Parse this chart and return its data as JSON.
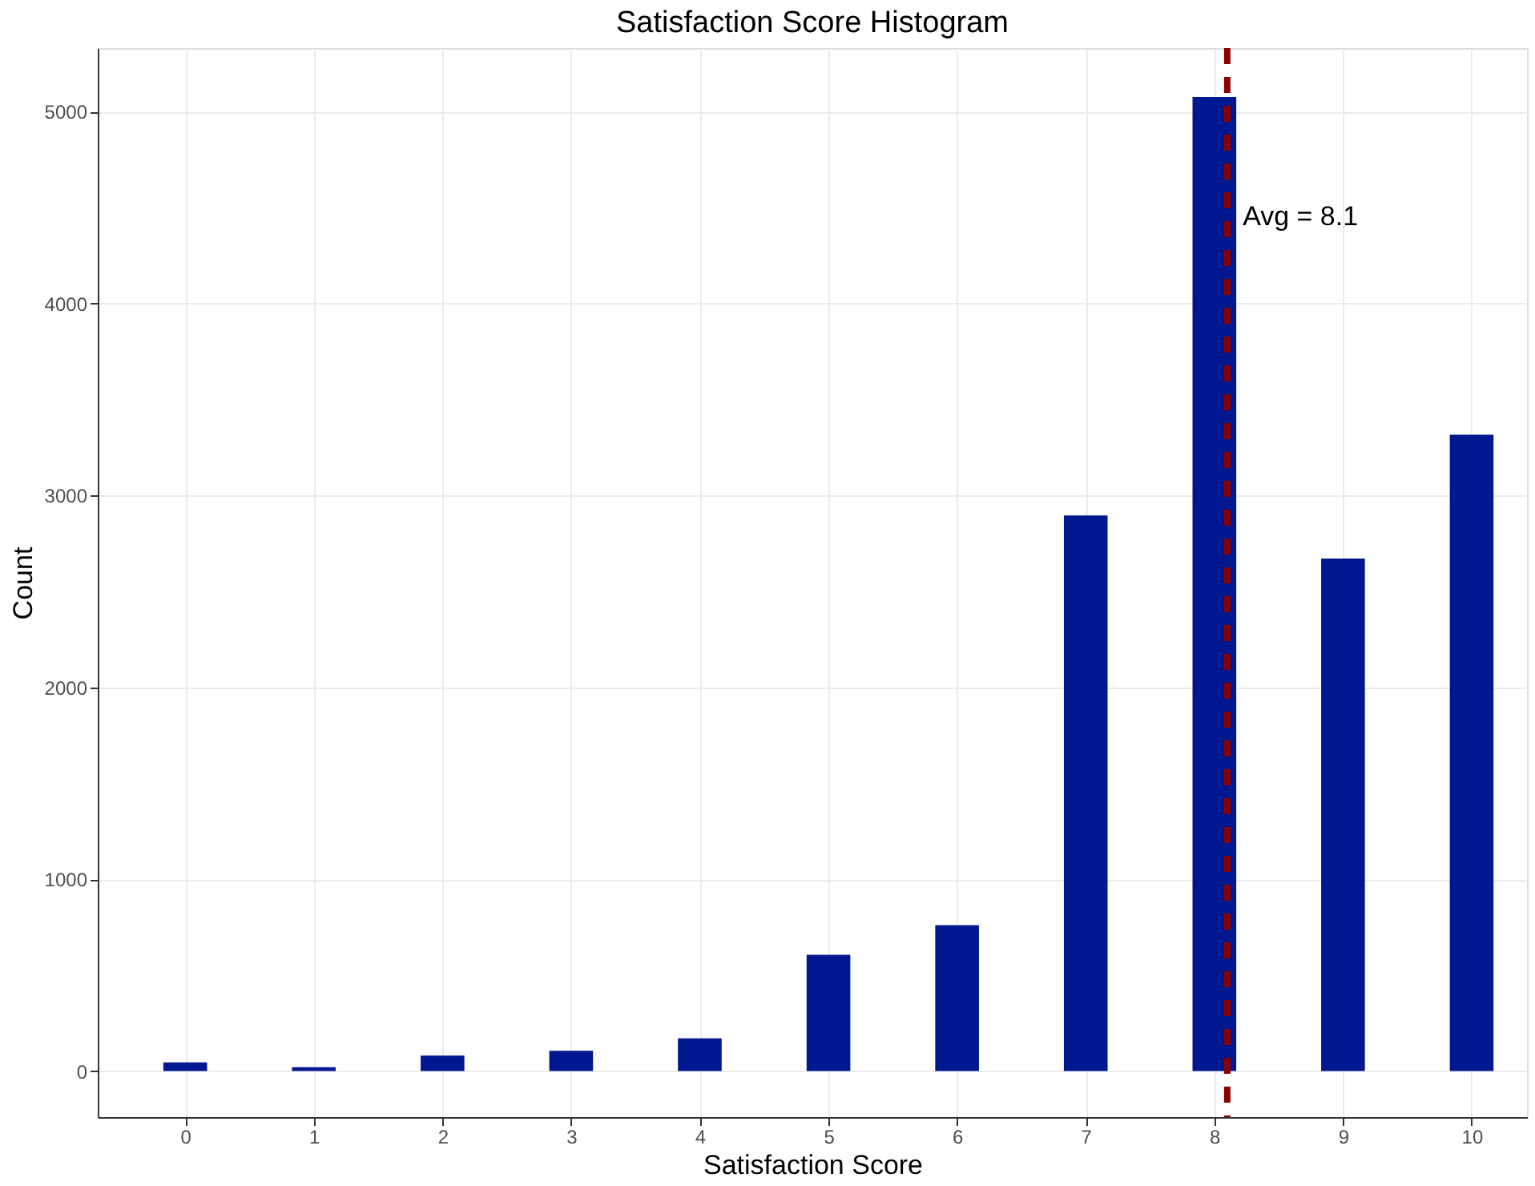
{
  "chart_data": {
    "type": "bar",
    "title": "Satisfaction Score Histogram",
    "xlabel": "Satisfaction Score",
    "ylabel": "Count",
    "x": [
      0,
      1,
      2,
      3,
      4,
      5,
      6,
      7,
      8,
      9,
      10
    ],
    "values": [
      45,
      20,
      80,
      105,
      170,
      605,
      760,
      2895,
      5075,
      2670,
      3315
    ],
    "color": "#00188f",
    "xlim": [
      -0.68,
      10.43
    ],
    "xticks": [
      0,
      1,
      2,
      3,
      4,
      5,
      6,
      7,
      8,
      9,
      10
    ],
    "ylim": [
      -240,
      5330
    ],
    "yticks": [
      0,
      1000,
      2000,
      3000,
      4000,
      5000
    ],
    "grid": true,
    "ref_lines": [
      {
        "axis": "x",
        "value": 8.1,
        "color": "#8b0000",
        "line_style": "dashed"
      }
    ],
    "annotations": [
      {
        "text": "Avg = 8.1",
        "x": 8.22,
        "y": 4450
      }
    ]
  }
}
